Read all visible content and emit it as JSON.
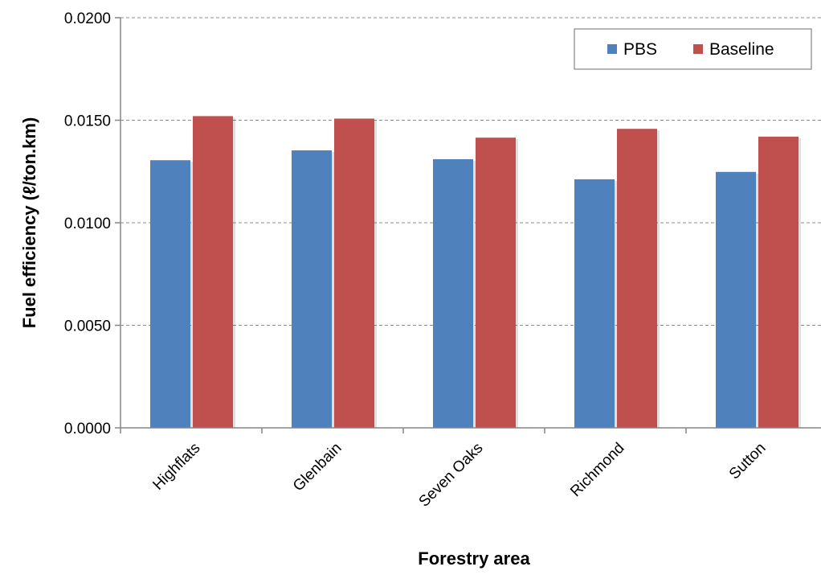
{
  "chart_data": {
    "type": "bar",
    "categories": [
      "Highflats",
      "Glenbain",
      "Seven Oaks",
      "Richmond",
      "Sutton"
    ],
    "series": [
      {
        "name": "PBS",
        "color": "#4F81BD",
        "values": [
          0.01305,
          0.01353,
          0.0131,
          0.01212,
          0.01248
        ]
      },
      {
        "name": "Baseline",
        "color": "#C0504D",
        "values": [
          0.0152,
          0.01508,
          0.01415,
          0.01458,
          0.0142
        ]
      }
    ],
    "xlabel": "Forestry area",
    "ylabel": "Fuel efficiency (ℓ/ton.km)",
    "ylim": [
      0,
      0.02
    ],
    "yticks": [
      "0.0000",
      "0.0050",
      "0.0100",
      "0.0150",
      "0.0200"
    ],
    "grid": true,
    "legend_position": "top-right"
  }
}
